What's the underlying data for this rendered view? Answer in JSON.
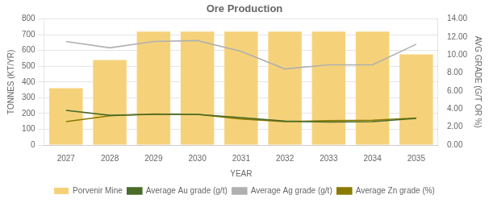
{
  "chart_data": {
    "type": "bar",
    "title": "Ore Production",
    "x_label": "YEAR",
    "y_label": "TONNES (KT/YR)",
    "y2_label": "AVG GRADE (G/T OR %)",
    "categories": [
      "2027",
      "2028",
      "2029",
      "2030",
      "2031",
      "2032",
      "2033",
      "2034",
      "2035"
    ],
    "series": [
      {
        "name": "Porvenir Mine",
        "type": "bar",
        "color": "#F5D27A",
        "values": [
          360,
          540,
          720,
          720,
          720,
          720,
          720,
          720,
          575
        ]
      },
      {
        "name": "Average Au grade (g/t)",
        "type": "line",
        "axis": "y2",
        "color": "#4a6b2a",
        "values": [
          3.85,
          3.3,
          3.4,
          3.4,
          3.05,
          2.65,
          2.55,
          2.6,
          2.95
        ]
      },
      {
        "name": "Average Ag grade (g/t)",
        "type": "line",
        "axis": "y2",
        "color": "#b0b0b0",
        "values": [
          11.5,
          10.8,
          11.5,
          11.6,
          10.4,
          8.45,
          8.9,
          8.9,
          11.2
        ]
      },
      {
        "name": "Average Zn grade (%)",
        "type": "line",
        "axis": "y2",
        "color": "#8b7a00",
        "values": [
          2.6,
          3.25,
          3.45,
          3.4,
          2.9,
          2.6,
          2.7,
          2.75,
          3.0
        ]
      }
    ],
    "ylim": [
      0,
      800
    ],
    "yticks": [
      0,
      100,
      200,
      300,
      400,
      500,
      600,
      700,
      800
    ],
    "y2lim": [
      0.0,
      14.0
    ],
    "y2ticks": [
      {
        "value": 0,
        "label": "0.00"
      },
      {
        "value": 2,
        "label": "2.00"
      },
      {
        "value": 4,
        "label": "4.00"
      },
      {
        "value": 6,
        "label": "6.00"
      },
      {
        "value": 8,
        "label": "8.00"
      },
      {
        "value": 10,
        "label": "10.00"
      },
      {
        "value": 12,
        "label": "12.00"
      },
      {
        "value": 14,
        "label": "14.00"
      }
    ],
    "grid": true,
    "legend": "bottom"
  }
}
